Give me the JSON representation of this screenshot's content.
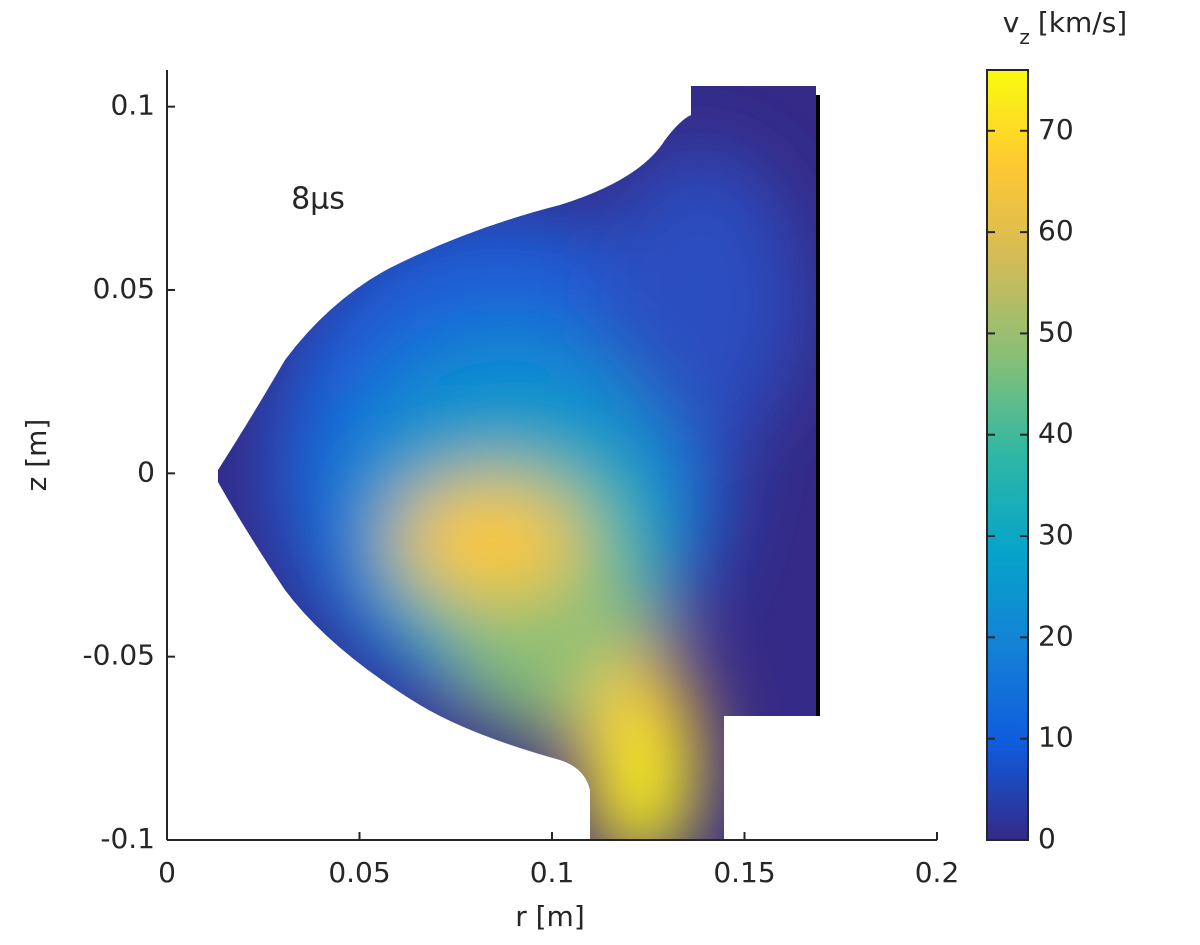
{
  "chart_data": {
    "type": "contour",
    "xlabel": "r [m]",
    "ylabel": "z [m]",
    "xlim": [
      0,
      0.2
    ],
    "xticks": [
      0,
      0.05,
      0.1,
      0.15,
      0.2
    ],
    "ylim": [
      -0.1,
      0.11
    ],
    "yticks": [
      -0.1,
      -0.05,
      0,
      0.05,
      0.1
    ],
    "annotation": "8μs",
    "annotation_color": "#ff0000",
    "colorbar": {
      "label": {
        "base": "v",
        "sub": "z",
        "unit": "[km/s]"
      },
      "clim": [
        0,
        76
      ],
      "ticks": [
        0,
        10,
        20,
        30,
        40,
        50,
        60,
        70
      ],
      "colormap": [
        "#352a87",
        "#0f5cdd",
        "#1481d6",
        "#06a4ca",
        "#2eb7a4",
        "#87bf77",
        "#d1bb59",
        "#fec832",
        "#f9fb0e"
      ]
    }
  }
}
